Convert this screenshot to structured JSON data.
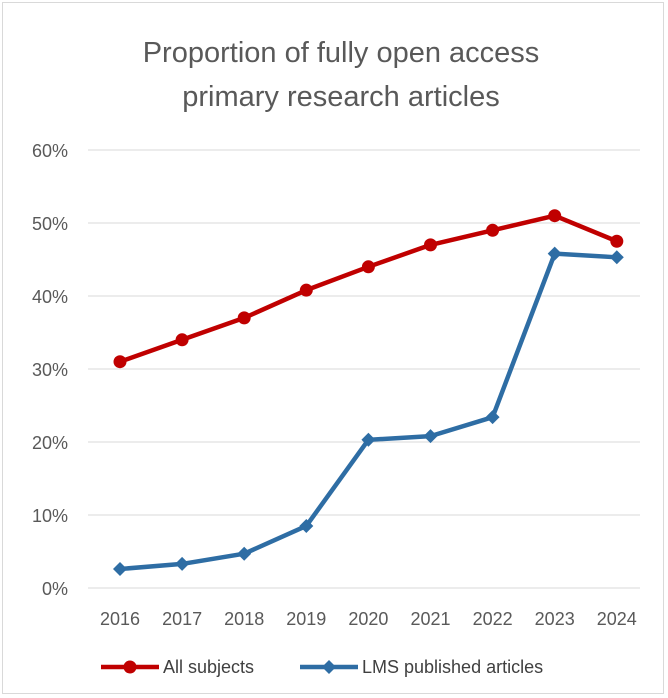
{
  "chart_data": {
    "type": "line",
    "title": [
      "Proportion of fully open access",
      "primary research articles"
    ],
    "categories": [
      "2016",
      "2017",
      "2018",
      "2019",
      "2020",
      "2021",
      "2022",
      "2023",
      "2024"
    ],
    "y_ticks": [
      "0%",
      "10%",
      "20%",
      "30%",
      "40%",
      "50%",
      "60%"
    ],
    "ylim": [
      0,
      60
    ],
    "grid": true,
    "legend_position": "bottom",
    "series": [
      {
        "name": "All subjects",
        "color": "#c00000",
        "marker": "circle",
        "values": [
          31.0,
          34.0,
          37.0,
          40.8,
          44.0,
          47.0,
          49.0,
          51.0,
          47.5
        ]
      },
      {
        "name": "LMS published articles",
        "color": "#2e6da4",
        "marker": "diamond",
        "values": [
          2.6,
          3.3,
          4.7,
          8.5,
          20.3,
          20.8,
          23.4,
          45.8,
          45.3
        ]
      }
    ]
  }
}
